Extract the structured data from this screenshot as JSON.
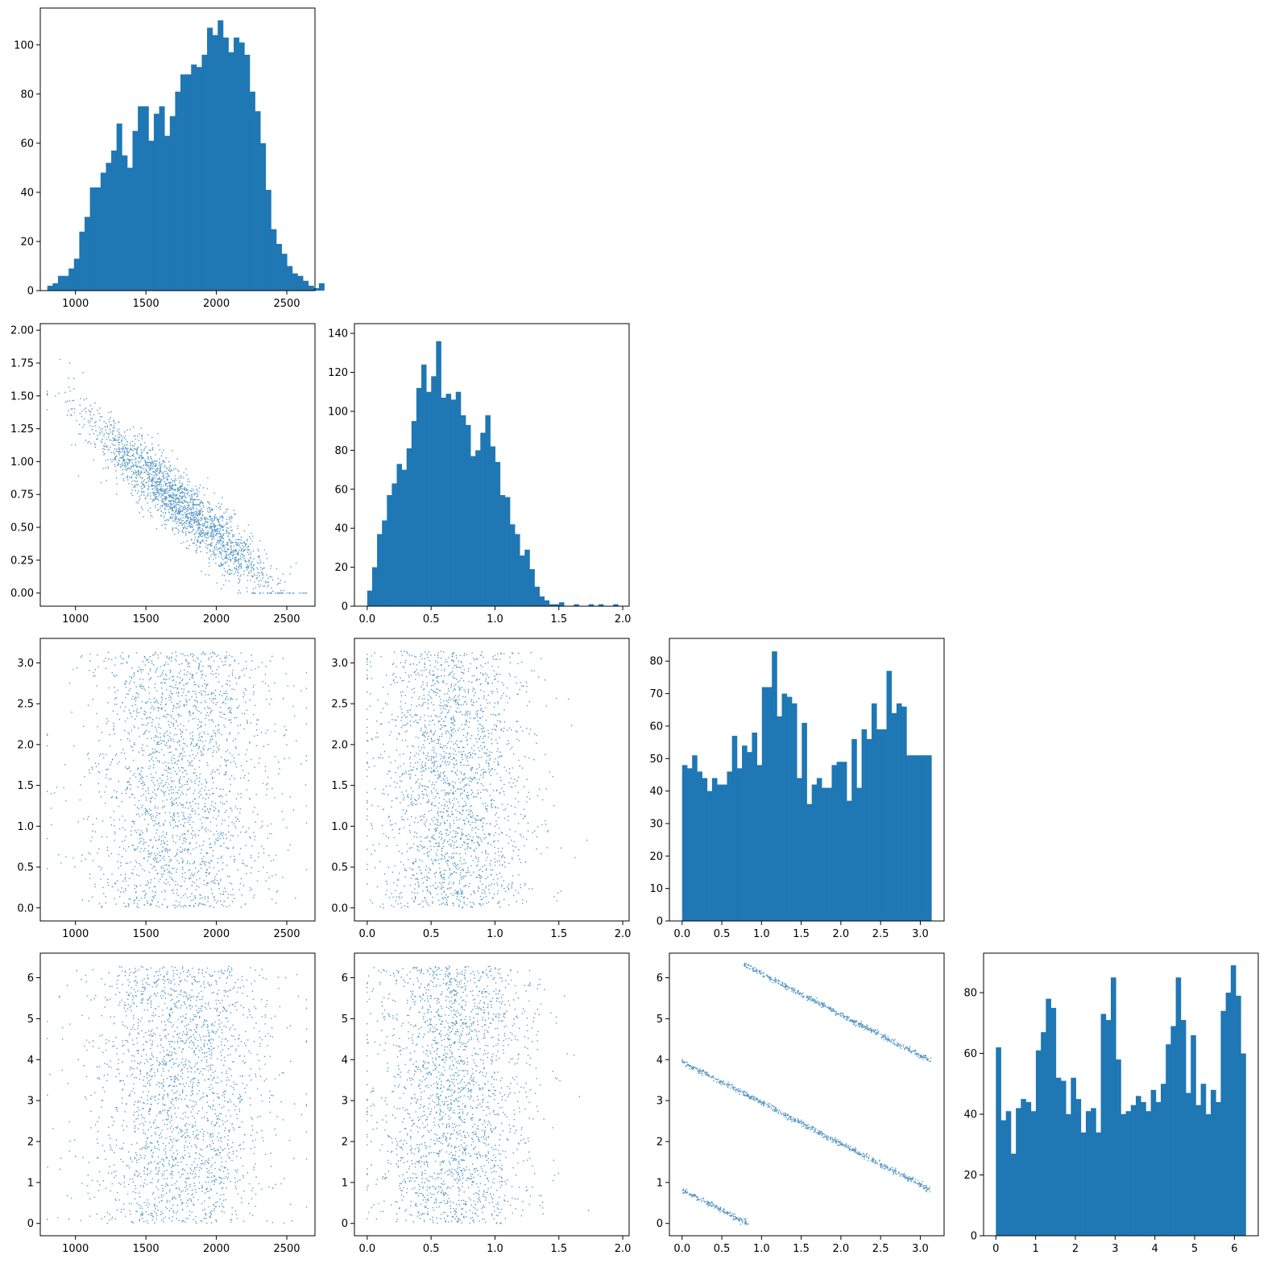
{
  "colors": {
    "series": "#1f77b4",
    "axes": "#000000",
    "background": "#ffffff"
  },
  "chart_data": [
    {
      "type": "histogram",
      "row": 0,
      "col": 0,
      "bin_start": 800,
      "bin_width": 37.8,
      "values": [
        2,
        3,
        6,
        6,
        9,
        13,
        24,
        30,
        42,
        42,
        48,
        52,
        57,
        68,
        55,
        50,
        65,
        75,
        75,
        61,
        72,
        75,
        63,
        71,
        81,
        88,
        88,
        92,
        91,
        96,
        107,
        104,
        110,
        103,
        97,
        103,
        101,
        96,
        81,
        73,
        60,
        41,
        25,
        19,
        15,
        10,
        7,
        6,
        4,
        2,
        1,
        3
      ],
      "xlim": [
        750,
        2700
      ],
      "ylim": [
        0,
        115
      ],
      "xticks": [
        1000,
        1500,
        2000,
        2500
      ],
      "xtick_labels": [
        "1000",
        "1500",
        "2000",
        "2500"
      ],
      "yticks": [
        0,
        20,
        40,
        60,
        80,
        100
      ],
      "ytick_labels": [
        "0",
        "20",
        "40",
        "60",
        "80",
        "100"
      ]
    },
    {
      "type": "scatter",
      "row": 1,
      "col": 0,
      "x_range": [
        800,
        2640
      ],
      "relation": "y ≈ 2.3 − 0.00093·x ± 0.12",
      "xlim": [
        750,
        2700
      ],
      "ylim": [
        -0.1,
        2.05
      ],
      "xticks": [
        1000,
        1500,
        2000,
        2500
      ],
      "xtick_labels": [
        "1000",
        "1500",
        "2000",
        "2500"
      ],
      "yticks": [
        0,
        0.25,
        0.5,
        0.75,
        1.0,
        1.25,
        1.5,
        1.75,
        2.0
      ],
      "ytick_labels": [
        "0.00",
        "0.25",
        "0.50",
        "0.75",
        "1.00",
        "1.25",
        "1.50",
        "1.75",
        "2.00"
      ]
    },
    {
      "type": "histogram",
      "row": 1,
      "col": 1,
      "bin_start": 0.0,
      "bin_width": 0.0385,
      "values": [
        8,
        20,
        37,
        44,
        57,
        63,
        73,
        70,
        81,
        95,
        112,
        124,
        110,
        118,
        136,
        107,
        109,
        106,
        110,
        98,
        93,
        77,
        80,
        89,
        98,
        82,
        74,
        57,
        56,
        42,
        37,
        26,
        29,
        19,
        10,
        5,
        3,
        1,
        1,
        2,
        0,
        0,
        1,
        0,
        0,
        1,
        0,
        1,
        0,
        0,
        1
      ],
      "xlim": [
        -0.1,
        2.05
      ],
      "ylim": [
        0,
        145
      ],
      "xticks": [
        0,
        0.5,
        1.0,
        1.5,
        2.0
      ],
      "xtick_labels": [
        "0.0",
        "0.5",
        "1.0",
        "1.5",
        "2.0"
      ],
      "yticks": [
        0,
        20,
        40,
        60,
        80,
        100,
        120,
        140
      ],
      "ytick_labels": [
        "0",
        "20",
        "40",
        "60",
        "80",
        "100",
        "120",
        "140"
      ]
    },
    {
      "type": "scatter",
      "row": 2,
      "col": 0,
      "x_range": [
        800,
        2640
      ],
      "y_range": [
        0,
        3.14159
      ],
      "relation": "uniform",
      "xlim": [
        750,
        2700
      ],
      "ylim": [
        -0.16,
        3.3
      ],
      "xticks": [
        1000,
        1500,
        2000,
        2500
      ],
      "xtick_labels": [
        "1000",
        "1500",
        "2000",
        "2500"
      ],
      "yticks": [
        0,
        0.5,
        1.0,
        1.5,
        2.0,
        2.5,
        3.0
      ],
      "ytick_labels": [
        "0.0",
        "0.5",
        "1.0",
        "1.5",
        "2.0",
        "2.5",
        "3.0"
      ]
    },
    {
      "type": "scatter",
      "row": 2,
      "col": 1,
      "x_range": [
        0,
        1.93
      ],
      "y_range": [
        0,
        3.14159
      ],
      "relation": "uniform",
      "xlim": [
        -0.1,
        2.05
      ],
      "ylim": [
        -0.16,
        3.3
      ],
      "xticks": [
        0,
        0.5,
        1.0,
        1.5,
        2.0
      ],
      "xtick_labels": [
        "0.0",
        "0.5",
        "1.0",
        "1.5",
        "2.0"
      ],
      "yticks": [
        0,
        0.5,
        1.0,
        1.5,
        2.0,
        2.5,
        3.0
      ],
      "ytick_labels": [
        "0.0",
        "0.5",
        "1.0",
        "1.5",
        "2.0",
        "2.5",
        "3.0"
      ]
    },
    {
      "type": "histogram",
      "row": 2,
      "col": 2,
      "bin_start": 0.0,
      "bin_width": 0.0628,
      "values": [
        48,
        47,
        51,
        46,
        44,
        40,
        44,
        42,
        42,
        46,
        57,
        47,
        54,
        52,
        58,
        48,
        72,
        72,
        83,
        63,
        70,
        69,
        67,
        44,
        61,
        36,
        42,
        44,
        41,
        41,
        48,
        49,
        49,
        37,
        56,
        41,
        59,
        56,
        67,
        59,
        59,
        77,
        64,
        67,
        66,
        51,
        51,
        51,
        51,
        51
      ],
      "xlim": [
        -0.16,
        3.3
      ],
      "ylim": [
        0,
        87
      ],
      "xticks": [
        0,
        0.5,
        1.0,
        1.5,
        2.0,
        2.5,
        3.0
      ],
      "xtick_labels": [
        "0.0",
        "0.5",
        "1.0",
        "1.5",
        "2.0",
        "2.5",
        "3.0"
      ],
      "yticks": [
        0,
        10,
        20,
        30,
        40,
        50,
        60,
        70,
        80
      ],
      "ytick_labels": [
        "0",
        "10",
        "20",
        "30",
        "40",
        "50",
        "60",
        "70",
        "80"
      ]
    },
    {
      "type": "scatter",
      "row": 3,
      "col": 0,
      "x_range": [
        800,
        2640
      ],
      "y_range": [
        0,
        6.28
      ],
      "relation": "uniform",
      "xlim": [
        750,
        2700
      ],
      "ylim": [
        -0.3,
        6.6
      ],
      "xticks": [
        1000,
        1500,
        2000,
        2500
      ],
      "xtick_labels": [
        "1000",
        "1500",
        "2000",
        "2500"
      ],
      "yticks": [
        0,
        1,
        2,
        3,
        4,
        5,
        6
      ],
      "ytick_labels": [
        "0",
        "1",
        "2",
        "3",
        "4",
        "5",
        "6"
      ]
    },
    {
      "type": "scatter",
      "row": 3,
      "col": 1,
      "x_range": [
        0,
        1.93
      ],
      "y_range": [
        0,
        6.28
      ],
      "relation": "uniform",
      "xlim": [
        -0.1,
        2.05
      ],
      "ylim": [
        -0.3,
        6.6
      ],
      "xticks": [
        0,
        0.5,
        1.0,
        1.5,
        2.0
      ],
      "xtick_labels": [
        "0.0",
        "0.5",
        "1.0",
        "1.5",
        "2.0"
      ],
      "yticks": [
        0,
        1,
        2,
        3,
        4,
        5,
        6
      ],
      "ytick_labels": [
        "0",
        "1",
        "2",
        "3",
        "4",
        "5",
        "6"
      ]
    },
    {
      "type": "scatter",
      "row": 3,
      "col": 2,
      "bands": [
        {
          "x_range": [
            0.0,
            0.83
          ],
          "intercept": 0.82,
          "slope": -1.0
        },
        {
          "x_range": [
            0.0,
            3.14
          ],
          "intercept": 3.95,
          "slope": -1.0
        },
        {
          "x_range": [
            0.78,
            3.14
          ],
          "intercept": 7.1,
          "slope": -1.0
        }
      ],
      "xlim": [
        -0.16,
        3.3
      ],
      "ylim": [
        -0.3,
        6.6
      ],
      "xticks": [
        0,
        0.5,
        1.0,
        1.5,
        2.0,
        2.5,
        3.0
      ],
      "xtick_labels": [
        "0.0",
        "0.5",
        "1.0",
        "1.5",
        "2.0",
        "2.5",
        "3.0"
      ],
      "yticks": [
        0,
        1,
        2,
        3,
        4,
        5,
        6
      ],
      "ytick_labels": [
        "0",
        "1",
        "2",
        "3",
        "4",
        "5",
        "6"
      ]
    },
    {
      "type": "histogram",
      "row": 3,
      "col": 3,
      "bin_start": 0.0,
      "bin_width": 0.1257,
      "values": [
        62,
        38,
        41,
        27,
        42,
        45,
        44,
        41,
        61,
        67,
        78,
        75,
        52,
        51,
        40,
        52,
        45,
        34,
        41,
        42,
        34,
        73,
        71,
        85,
        58,
        40,
        41,
        43,
        46,
        44,
        41,
        48,
        44,
        50,
        63,
        69,
        85,
        71,
        47,
        66,
        43,
        50,
        40,
        48,
        44,
        74,
        80,
        89,
        79,
        60
      ],
      "xlim": [
        -0.31,
        6.6
      ],
      "ylim": [
        0,
        93
      ],
      "xticks": [
        0,
        1,
        2,
        3,
        4,
        5,
        6
      ],
      "xtick_labels": [
        "0",
        "1",
        "2",
        "3",
        "4",
        "5",
        "6"
      ],
      "yticks": [
        0,
        20,
        40,
        60,
        80
      ],
      "ytick_labels": [
        "0",
        "20",
        "40",
        "60",
        "80"
      ]
    }
  ]
}
